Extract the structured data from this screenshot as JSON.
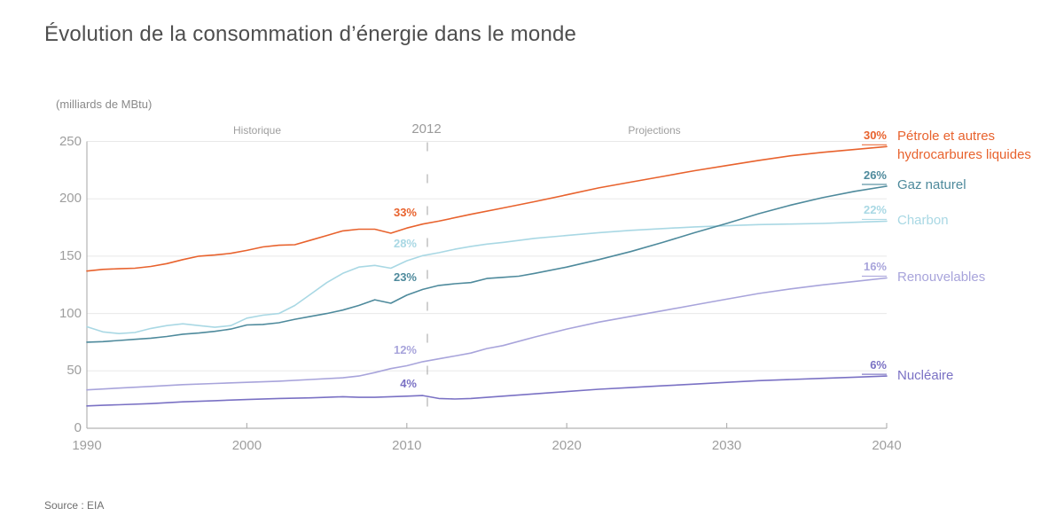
{
  "colors": {
    "background": "#ffffff",
    "grid": "#e8e8e8",
    "axis": "#b3b3b3",
    "divider_dash": "#b0b0b0",
    "title_text": "#4e4e4e",
    "tick_text": "#9e9e9e"
  },
  "chart_data": {
    "type": "line",
    "title": "Évolution de la consommation d’énergie dans le monde",
    "unit_label": "(milliards de MBtu)",
    "source": "Source : EIA",
    "period_labels": {
      "left": "Historique",
      "divider_year": "2012",
      "right": "Projections"
    },
    "xlim": [
      1990,
      2040
    ],
    "xticks": [
      1990,
      2000,
      2010,
      2020,
      2030,
      2040
    ],
    "ylim": [
      0,
      250
    ],
    "yticks": [
      0,
      50,
      100,
      150,
      200,
      250
    ],
    "grid": "horizontal",
    "legend_position": "right-of-lines",
    "series": [
      {
        "id": "charbon",
        "label_lines": [
          "Charbon"
        ],
        "color": "#a9d8e4",
        "share_2012": "28%",
        "share_2040": "22%",
        "points": [
          [
            1990,
            88.5
          ],
          [
            1991,
            84
          ],
          [
            1992,
            82.5
          ],
          [
            1993,
            83.5
          ],
          [
            1994,
            87
          ],
          [
            1995,
            89.5
          ],
          [
            1996,
            91
          ],
          [
            1997,
            89.5
          ],
          [
            1998,
            88
          ],
          [
            1999,
            89.5
          ],
          [
            2000,
            96
          ],
          [
            2001,
            98.5
          ],
          [
            2002,
            100
          ],
          [
            2003,
            107
          ],
          [
            2004,
            117
          ],
          [
            2005,
            127
          ],
          [
            2006,
            135
          ],
          [
            2007,
            140.5
          ],
          [
            2008,
            142
          ],
          [
            2009,
            139.5
          ],
          [
            2010,
            146
          ],
          [
            2011,
            150.5
          ],
          [
            2012,
            153
          ],
          [
            2013,
            156
          ],
          [
            2014,
            158.5
          ],
          [
            2015,
            160.5
          ],
          [
            2016,
            162
          ],
          [
            2018,
            165.5
          ],
          [
            2020,
            168
          ],
          [
            2022,
            170.5
          ],
          [
            2024,
            172.5
          ],
          [
            2026,
            174
          ],
          [
            2028,
            175.5
          ],
          [
            2030,
            176.5
          ],
          [
            2032,
            177.5
          ],
          [
            2034,
            178
          ],
          [
            2036,
            178.5
          ],
          [
            2038,
            179.5
          ],
          [
            2040,
            180.5
          ]
        ]
      },
      {
        "id": "renouvelables",
        "label_lines": [
          "Renouvelables"
        ],
        "color": "#a8a4db",
        "share_2012": "12%",
        "share_2040": "16%",
        "points": [
          [
            1990,
            33.5
          ],
          [
            1992,
            35
          ],
          [
            1994,
            36.5
          ],
          [
            1996,
            38
          ],
          [
            1998,
            39
          ],
          [
            2000,
            40
          ],
          [
            2002,
            41
          ],
          [
            2004,
            42.5
          ],
          [
            2006,
            44
          ],
          [
            2007,
            45.5
          ],
          [
            2008,
            48.5
          ],
          [
            2009,
            52
          ],
          [
            2010,
            54.5
          ],
          [
            2011,
            58
          ],
          [
            2012,
            60.5
          ],
          [
            2013,
            63
          ],
          [
            2014,
            65.5
          ],
          [
            2015,
            69.5
          ],
          [
            2016,
            72
          ],
          [
            2018,
            79.5
          ],
          [
            2020,
            86.5
          ],
          [
            2022,
            92.5
          ],
          [
            2024,
            97.5
          ],
          [
            2026,
            102.5
          ],
          [
            2028,
            107.5
          ],
          [
            2030,
            112.5
          ],
          [
            2032,
            117.5
          ],
          [
            2034,
            121.5
          ],
          [
            2036,
            125
          ],
          [
            2038,
            128
          ],
          [
            2040,
            131
          ]
        ]
      },
      {
        "id": "nucleaire",
        "label_lines": [
          "Nucléaire"
        ],
        "color": "#7a71c4",
        "share_2012": "4%",
        "share_2040": "6%",
        "points": [
          [
            1990,
            19.5
          ],
          [
            1991,
            20
          ],
          [
            1992,
            20.5
          ],
          [
            1994,
            21.5
          ],
          [
            1996,
            23
          ],
          [
            1998,
            24
          ],
          [
            2000,
            25
          ],
          [
            2002,
            26
          ],
          [
            2004,
            26.5
          ],
          [
            2005,
            27
          ],
          [
            2006,
            27.5
          ],
          [
            2007,
            27
          ],
          [
            2008,
            27
          ],
          [
            2009,
            27.5
          ],
          [
            2010,
            28
          ],
          [
            2011,
            28.5
          ],
          [
            2012,
            26
          ],
          [
            2013,
            25.5
          ],
          [
            2014,
            26
          ],
          [
            2016,
            28
          ],
          [
            2018,
            30
          ],
          [
            2020,
            32
          ],
          [
            2022,
            34
          ],
          [
            2024,
            35.5
          ],
          [
            2026,
            37
          ],
          [
            2028,
            38.5
          ],
          [
            2030,
            40
          ],
          [
            2032,
            41.5
          ],
          [
            2034,
            42.5
          ],
          [
            2036,
            43.5
          ],
          [
            2038,
            44.5
          ],
          [
            2040,
            45.5
          ]
        ]
      },
      {
        "id": "gaz-naturel",
        "label_lines": [
          "Gaz naturel"
        ],
        "color": "#4e8a9c",
        "share_2012": "23%",
        "share_2040": "26%",
        "points": [
          [
            1990,
            75
          ],
          [
            1991,
            75.5
          ],
          [
            1992,
            76.5
          ],
          [
            1993,
            77.5
          ],
          [
            1994,
            78.5
          ],
          [
            1995,
            80
          ],
          [
            1996,
            82
          ],
          [
            1997,
            83
          ],
          [
            1998,
            84.5
          ],
          [
            1999,
            86.5
          ],
          [
            2000,
            90
          ],
          [
            2001,
            90.5
          ],
          [
            2002,
            92
          ],
          [
            2003,
            95
          ],
          [
            2004,
            97.5
          ],
          [
            2005,
            100
          ],
          [
            2006,
            103
          ],
          [
            2007,
            107
          ],
          [
            2008,
            112
          ],
          [
            2009,
            109
          ],
          [
            2010,
            116
          ],
          [
            2011,
            121
          ],
          [
            2012,
            124.5
          ],
          [
            2013,
            126
          ],
          [
            2014,
            127
          ],
          [
            2015,
            130.5
          ],
          [
            2016,
            131.5
          ],
          [
            2017,
            132.5
          ],
          [
            2018,
            135
          ],
          [
            2020,
            140.5
          ],
          [
            2022,
            147
          ],
          [
            2024,
            154
          ],
          [
            2026,
            162
          ],
          [
            2028,
            170.5
          ],
          [
            2030,
            178.5
          ],
          [
            2032,
            187
          ],
          [
            2034,
            194.5
          ],
          [
            2036,
            201
          ],
          [
            2038,
            206.5
          ],
          [
            2040,
            211
          ]
        ]
      },
      {
        "id": "petrole",
        "label_lines": [
          "Pétrole et autres",
          "hydrocarbures liquides"
        ],
        "color": "#e8622d",
        "share_2012": "33%",
        "share_2040": "30%",
        "points": [
          [
            1990,
            137
          ],
          [
            1991,
            138.5
          ],
          [
            1992,
            139
          ],
          [
            1993,
            139.5
          ],
          [
            1994,
            141
          ],
          [
            1995,
            143.5
          ],
          [
            1996,
            147
          ],
          [
            1997,
            150
          ],
          [
            1998,
            151
          ],
          [
            1999,
            152.5
          ],
          [
            2000,
            155
          ],
          [
            2001,
            158
          ],
          [
            2002,
            159.5
          ],
          [
            2003,
            160
          ],
          [
            2004,
            164
          ],
          [
            2005,
            168
          ],
          [
            2006,
            172
          ],
          [
            2007,
            173.5
          ],
          [
            2008,
            173.5
          ],
          [
            2009,
            170
          ],
          [
            2010,
            174.5
          ],
          [
            2011,
            178
          ],
          [
            2012,
            180.5
          ],
          [
            2014,
            186.5
          ],
          [
            2016,
            192
          ],
          [
            2018,
            197.5
          ],
          [
            2020,
            203.5
          ],
          [
            2022,
            209.5
          ],
          [
            2024,
            214.5
          ],
          [
            2026,
            219.5
          ],
          [
            2028,
            224.5
          ],
          [
            2030,
            229
          ],
          [
            2032,
            233.5
          ],
          [
            2034,
            237.5
          ],
          [
            2036,
            240.5
          ],
          [
            2038,
            243
          ],
          [
            2040,
            245.5
          ]
        ]
      }
    ]
  }
}
